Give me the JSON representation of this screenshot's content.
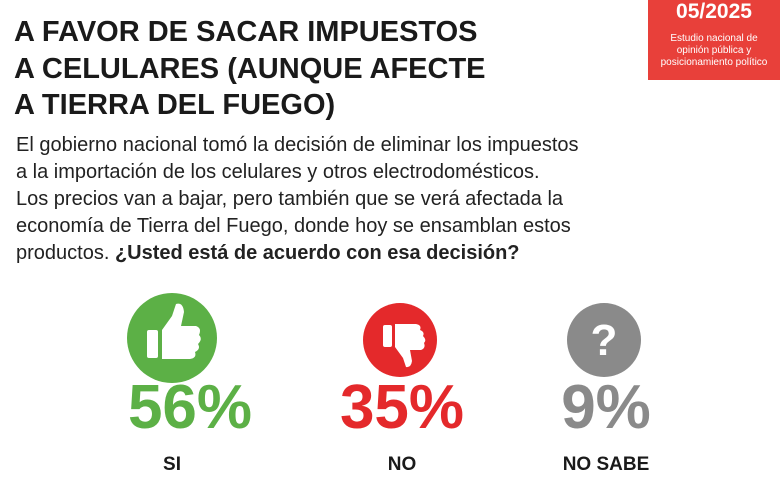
{
  "badge": {
    "date": "05/2025",
    "lines": [
      "Estudio nacional de",
      "opinión pública y",
      "posicionamiento político"
    ]
  },
  "title": [
    "A FAVOR DE SACAR IMPUESTOS",
    "A CELULARES (AUNQUE AFECTE",
    "A TIERRA DEL FUEGO)"
  ],
  "question": {
    "lines": [
      "El gobierno nacional tomó la decisión de eliminar los impuestos",
      "a la importación de los celulares y otros electrodomésticos.",
      "Los precios van a bajar, pero también que se verá afectada la",
      "economía de Tierra del Fuego, donde hoy se ensamblan estos",
      "productos."
    ],
    "bold": "¿Usted está de acuerdo con esa decisión?"
  },
  "results": [
    {
      "value": "56%",
      "label": "SI"
    },
    {
      "value": "35%",
      "label": "NO"
    },
    {
      "value": "9%",
      "label": "NO SABE"
    }
  ]
}
